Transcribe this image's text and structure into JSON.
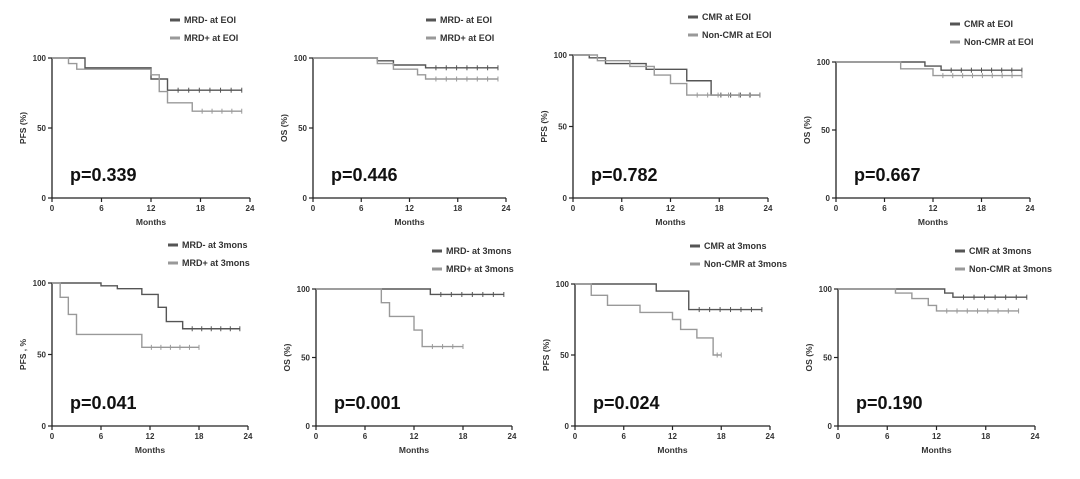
{
  "colors": {
    "series1": "#555555",
    "series2": "#999999",
    "axis": "#222222"
  },
  "chart_data": [
    {
      "type": "line",
      "subtype": "kaplan-meier",
      "xlabel": "Months",
      "ylabel": "PFS (%)",
      "xticks": [
        0,
        6,
        12,
        18,
        24
      ],
      "yticks": [
        0,
        50,
        100
      ],
      "xlim": [
        0,
        24
      ],
      "ylim": [
        0,
        100
      ],
      "pvalue": "p=0.339",
      "series": [
        {
          "name": "MRD- at EOI",
          "steps": [
            [
              0,
              100
            ],
            [
              4,
              93
            ],
            [
              12,
              85
            ],
            [
              14,
              77
            ],
            [
              23,
              77
            ]
          ]
        },
        {
          "name": "MRD+ at EOI",
          "steps": [
            [
              0,
              100
            ],
            [
              2,
              96
            ],
            [
              3,
              92
            ],
            [
              12,
              88
            ],
            [
              13,
              76
            ],
            [
              14,
              68
            ],
            [
              17,
              62
            ],
            [
              23,
              62
            ]
          ]
        }
      ]
    },
    {
      "type": "line",
      "subtype": "kaplan-meier",
      "xlabel": "Months",
      "ylabel": "OS (%)",
      "xticks": [
        0,
        6,
        12,
        18,
        24
      ],
      "yticks": [
        0,
        50,
        100
      ],
      "xlim": [
        0,
        24
      ],
      "ylim": [
        0,
        100
      ],
      "pvalue": "p=0.446",
      "series": [
        {
          "name": "MRD- at EOI",
          "steps": [
            [
              0,
              100
            ],
            [
              8,
              98
            ],
            [
              10,
              95
            ],
            [
              14,
              93
            ],
            [
              23,
              93
            ]
          ]
        },
        {
          "name": "MRD+ at EOI",
          "steps": [
            [
              0,
              100
            ],
            [
              8,
              96
            ],
            [
              10,
              92
            ],
            [
              13,
              88
            ],
            [
              14,
              85
            ],
            [
              23,
              85
            ]
          ]
        }
      ]
    },
    {
      "type": "line",
      "subtype": "kaplan-meier",
      "xlabel": "Months",
      "ylabel": "PFS (%)",
      "xticks": [
        0,
        6,
        12,
        18,
        24
      ],
      "yticks": [
        0,
        50,
        100
      ],
      "xlim": [
        0,
        24
      ],
      "ylim": [
        0,
        100
      ],
      "pvalue": "p=0.782",
      "series": [
        {
          "name": "CMR at EOI",
          "steps": [
            [
              0,
              100
            ],
            [
              2,
              98
            ],
            [
              4,
              94
            ],
            [
              9,
              90
            ],
            [
              14,
              82
            ],
            [
              17,
              72
            ],
            [
              23,
              72
            ]
          ]
        },
        {
          "name": "Non-CMR at EOI",
          "steps": [
            [
              0,
              100
            ],
            [
              3,
              96
            ],
            [
              7,
              92
            ],
            [
              10,
              86
            ],
            [
              12,
              80
            ],
            [
              14,
              72
            ],
            [
              23,
              72
            ]
          ]
        }
      ]
    },
    {
      "type": "line",
      "subtype": "kaplan-meier",
      "xlabel": "Months",
      "ylabel": "OS (%)",
      "xticks": [
        0,
        6,
        12,
        18,
        24
      ],
      "yticks": [
        0,
        50,
        100
      ],
      "xlim": [
        0,
        24
      ],
      "ylim": [
        0,
        100
      ],
      "pvalue": "p=0.667",
      "series": [
        {
          "name": "CMR at EOI",
          "steps": [
            [
              0,
              100
            ],
            [
              11,
              97
            ],
            [
              13,
              94
            ],
            [
              23,
              94
            ]
          ]
        },
        {
          "name": "Non-CMR at EOI",
          "steps": [
            [
              0,
              100
            ],
            [
              8,
              95
            ],
            [
              12,
              90
            ],
            [
              23,
              90
            ]
          ]
        }
      ]
    },
    {
      "type": "line",
      "subtype": "kaplan-meier",
      "xlabel": "Months",
      "ylabel": "PFS , %",
      "xticks": [
        0,
        6,
        12,
        18,
        24
      ],
      "yticks": [
        0,
        50,
        100
      ],
      "xlim": [
        0,
        24
      ],
      "ylim": [
        0,
        100
      ],
      "pvalue": "p=0.041",
      "series": [
        {
          "name": "MRD- at 3mons",
          "steps": [
            [
              0,
              100
            ],
            [
              6,
              98
            ],
            [
              8,
              96
            ],
            [
              11,
              92
            ],
            [
              13,
              83
            ],
            [
              14,
              73
            ],
            [
              16,
              68
            ],
            [
              23,
              68
            ]
          ]
        },
        {
          "name": "MRD+ at 3mons",
          "steps": [
            [
              0,
              100
            ],
            [
              1,
              90
            ],
            [
              2,
              78
            ],
            [
              3,
              64
            ],
            [
              11,
              55
            ],
            [
              18,
              55
            ]
          ]
        }
      ]
    },
    {
      "type": "line",
      "subtype": "kaplan-meier",
      "xlabel": "Months",
      "ylabel": "OS (%)",
      "xticks": [
        0,
        6,
        12,
        18,
        24
      ],
      "yticks": [
        0,
        50,
        100
      ],
      "xlim": [
        0,
        24
      ],
      "ylim": [
        0,
        100
      ],
      "pvalue": "p=0.001",
      "series": [
        {
          "name": "MRD- at 3mons",
          "steps": [
            [
              0,
              100
            ],
            [
              14,
              96
            ],
            [
              23,
              96
            ]
          ]
        },
        {
          "name": "MRD+ at 3mons",
          "steps": [
            [
              0,
              100
            ],
            [
              8,
              90
            ],
            [
              9,
              80
            ],
            [
              12,
              70
            ],
            [
              13,
              58
            ],
            [
              18,
              58
            ]
          ]
        }
      ]
    },
    {
      "type": "line",
      "subtype": "kaplan-meier",
      "xlabel": "Months",
      "ylabel": "PFS (%)",
      "xticks": [
        0,
        6,
        12,
        18,
        24
      ],
      "yticks": [
        0,
        50,
        100
      ],
      "xlim": [
        0,
        24
      ],
      "ylim": [
        0,
        100
      ],
      "pvalue": "p=0.024",
      "series": [
        {
          "name": "CMR at 3mons",
          "steps": [
            [
              0,
              100
            ],
            [
              10,
              95
            ],
            [
              14,
              82
            ],
            [
              23,
              82
            ]
          ]
        },
        {
          "name": "Non-CMR at 3mons",
          "steps": [
            [
              0,
              100
            ],
            [
              2,
              92
            ],
            [
              4,
              85
            ],
            [
              8,
              80
            ],
            [
              12,
              75
            ],
            [
              13,
              68
            ],
            [
              15,
              62
            ],
            [
              17,
              50
            ],
            [
              18,
              50
            ]
          ]
        }
      ]
    },
    {
      "type": "line",
      "subtype": "kaplan-meier",
      "xlabel": "Months",
      "ylabel": "OS (%)",
      "xticks": [
        0,
        6,
        12,
        18,
        24
      ],
      "yticks": [
        0,
        50,
        100
      ],
      "xlim": [
        0,
        24
      ],
      "ylim": [
        0,
        100
      ],
      "pvalue": "p=0.190",
      "series": [
        {
          "name": "CMR at 3mons",
          "steps": [
            [
              0,
              100
            ],
            [
              13,
              97
            ],
            [
              14,
              94
            ],
            [
              23,
              94
            ]
          ]
        },
        {
          "name": "Non-CMR at 3mons",
          "steps": [
            [
              0,
              100
            ],
            [
              7,
              97
            ],
            [
              9,
              93
            ],
            [
              11,
              88
            ],
            [
              12,
              84
            ],
            [
              22,
              84
            ]
          ]
        }
      ]
    }
  ]
}
